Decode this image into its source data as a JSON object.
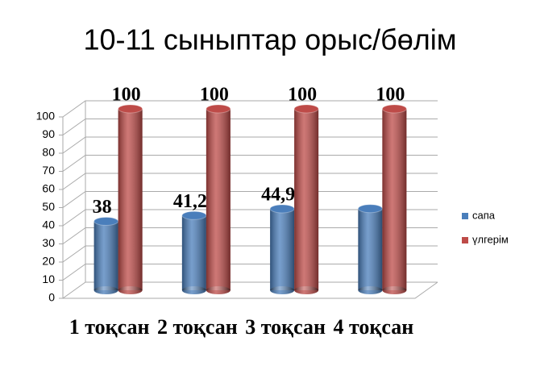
{
  "chart_data": {
    "type": "bar3d",
    "title": "10-11 сыныптар орыс/бөлім",
    "categories": [
      "1 тоқсан",
      "2 тоқсан",
      "3 тоқсан",
      "4 тоқсан"
    ],
    "series": [
      {
        "name": "сапа",
        "color": "#4a7ebb",
        "values": [
          38,
          41.2,
          44.9,
          45
        ],
        "value_labels": [
          "38",
          "41,2",
          "44,9",
          null
        ]
      },
      {
        "name": "үлгерім",
        "color": "#be4b48",
        "values": [
          100,
          100,
          100,
          100
        ]
      }
    ],
    "ylim": [
      0,
      100
    ],
    "yticks": [
      0,
      10,
      20,
      30,
      40,
      50,
      60,
      70,
      80,
      90,
      100
    ],
    "grid": true,
    "legend": "right"
  }
}
